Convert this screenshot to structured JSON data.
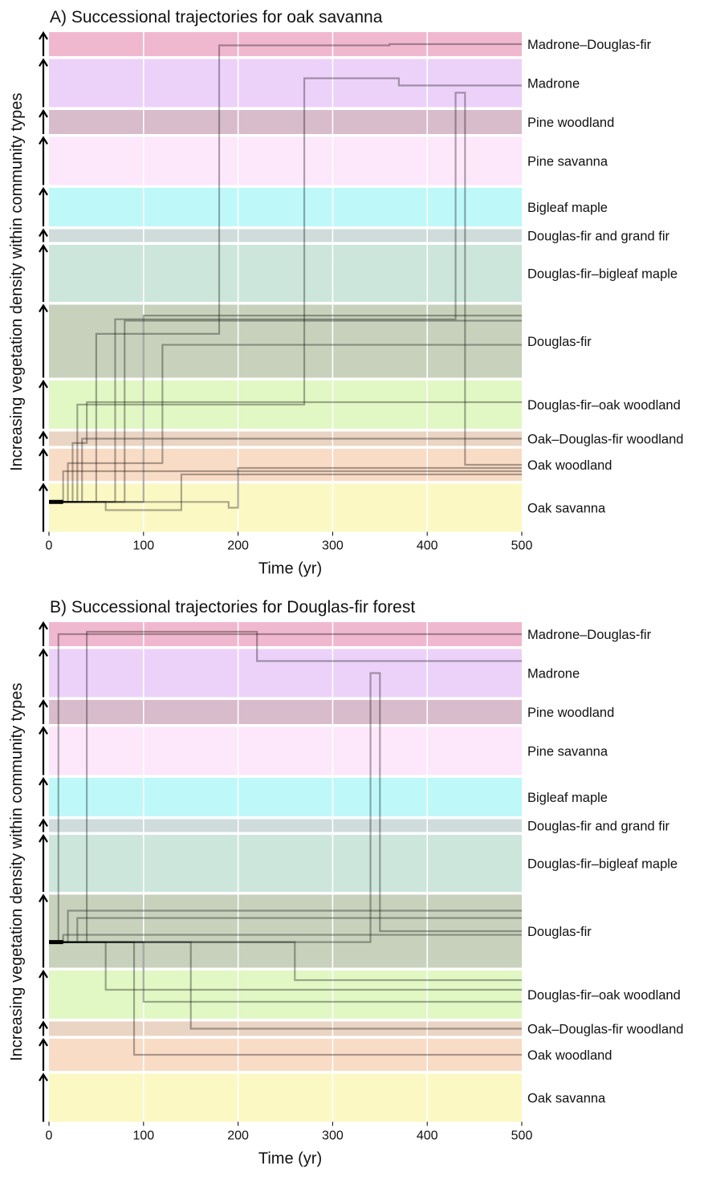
{
  "figure": {
    "x_ticks": [
      "0",
      "100",
      "200",
      "300",
      "400",
      "500"
    ],
    "xlabel": "Time (yr)",
    "ylabel": "Increasing vegetation density within community types"
  },
  "chart_data": [
    {
      "type": "line",
      "title": "A) Successional trajectories for oak savanna",
      "xlabel": "Time (yr)",
      "ylabel": "Increasing vegetation density within community types",
      "xlim": [
        0,
        500
      ],
      "x_ticks": [
        0,
        100,
        200,
        300,
        400,
        500
      ],
      "grid": true,
      "legend": "none",
      "community_types": [
        {
          "name": "Madrone–Douglas-fir",
          "color": "#f0b8cf"
        },
        {
          "name": "Madrone",
          "color": "#ecd2f9"
        },
        {
          "name": "Pine woodland",
          "color": "#d8bccb"
        },
        {
          "name": "Pine savanna",
          "color": "#fde7fb"
        },
        {
          "name": "Bigleaf maple",
          "color": "#bff8f9"
        },
        {
          "name": "Douglas-fir and grand fir",
          "color": "#cfdcdb"
        },
        {
          "name": "Douglas-fir–bigleaf maple",
          "color": "#cde6db"
        },
        {
          "name": "Douglas-fir",
          "color": "#c7d1bc"
        },
        {
          "name": "Douglas-fir–oak woodland",
          "color": "#e1f7c4"
        },
        {
          "name": "Oak–Douglas-fir woodland",
          "color": "#ead4c3"
        },
        {
          "name": "Oak woodland",
          "color": "#f9dcc6"
        },
        {
          "name": "Oak savanna",
          "color": "#fbf8c4"
        }
      ],
      "series": [
        {
          "start_type": "Oak savanna",
          "start_level": 0.62,
          "points": [
            [
              0,
              "Oak savanna",
              0.62
            ],
            [
              15,
              "Oak woodland",
              0.3
            ],
            [
              500,
              "Oak woodland",
              0.3
            ]
          ]
        },
        {
          "start_type": "Oak savanna",
          "start_level": 0.62,
          "points": [
            [
              0,
              "Oak savanna",
              0.62
            ],
            [
              25,
              "Oak–Douglas-fir woodland",
              0.2
            ],
            [
              40,
              "Douglas-fir–oak woodland",
              0.55
            ],
            [
              500,
              "Douglas-fir–oak woodland",
              0.55
            ]
          ]
        },
        {
          "start_type": "Oak savanna",
          "start_level": 0.62,
          "points": [
            [
              0,
              "Oak savanna",
              0.62
            ],
            [
              30,
              "Douglas-fir–oak woodland",
              0.5
            ],
            [
              80,
              "Douglas-fir",
              0.78
            ],
            [
              500,
              "Douglas-fir",
              0.78
            ]
          ]
        },
        {
          "start_type": "Oak savanna",
          "start_level": 0.62,
          "points": [
            [
              0,
              "Oak savanna",
              0.62
            ],
            [
              20,
              "Oak woodland",
              0.55
            ],
            [
              120,
              "Douglas-fir",
              0.45
            ],
            [
              500,
              "Douglas-fir",
              0.45
            ]
          ]
        },
        {
          "start_type": "Oak savanna",
          "start_level": 0.62,
          "points": [
            [
              0,
              "Oak savanna",
              0.62
            ],
            [
              35,
              "Oak–Douglas-fir woodland",
              0.5
            ],
            [
              500,
              "Oak–Douglas-fir woodland",
              0.5
            ]
          ]
        },
        {
          "start_type": "Oak savanna",
          "start_level": 0.62,
          "points": [
            [
              0,
              "Oak savanna",
              0.62
            ],
            [
              60,
              "Oak savanna",
              0.45
            ],
            [
              140,
              "Oak woodland",
              0.2
            ],
            [
              500,
              "Oak woodland",
              0.2
            ]
          ]
        },
        {
          "start_type": "Oak savanna",
          "start_level": 0.62,
          "points": [
            [
              0,
              "Oak savanna",
              0.62
            ],
            [
              100,
              "Douglas-fir",
              0.85
            ],
            [
              500,
              "Douglas-fir",
              0.85
            ]
          ]
        },
        {
          "start_type": "Oak savanna",
          "start_level": 0.62,
          "points": [
            [
              0,
              "Oak savanna",
              0.62
            ],
            [
              190,
              "Oak savanna",
              0.5
            ],
            [
              200,
              "Oak woodland",
              0.4
            ],
            [
              500,
              "Oak woodland",
              0.4
            ]
          ]
        },
        {
          "start_type": "Oak savanna",
          "start_level": 0.62,
          "points": [
            [
              0,
              "Oak savanna",
              0.62
            ],
            [
              50,
              "Douglas-fir",
              0.6
            ],
            [
              180,
              "Madrone–Douglas-fir",
              0.45
            ],
            [
              360,
              "Madrone–Douglas-fir",
              0.5
            ],
            [
              500,
              "Madrone–Douglas-fir",
              0.5
            ]
          ]
        },
        {
          "start_type": "Oak savanna",
          "start_level": 0.62,
          "points": [
            [
              0,
              "Oak savanna",
              0.62
            ],
            [
              80,
              "Douglas-fir–oak woodland",
              0.5
            ],
            [
              270,
              "Madrone",
              0.6
            ],
            [
              370,
              "Madrone",
              0.45
            ],
            [
              500,
              "Madrone",
              0.45
            ]
          ]
        },
        {
          "start_type": "Oak savanna",
          "start_level": 0.62,
          "points": [
            [
              0,
              "Oak savanna",
              0.62
            ],
            [
              70,
              "Douglas-fir",
              0.8
            ],
            [
              430,
              "Madrone",
              0.3
            ],
            [
              440,
              "Oak woodland",
              0.5
            ],
            [
              500,
              "Oak woodland",
              0.5
            ]
          ]
        }
      ]
    },
    {
      "type": "line",
      "title": "B) Successional trajectories for Douglas-fir forest",
      "xlabel": "Time (yr)",
      "ylabel": "Increasing vegetation density within community types",
      "xlim": [
        0,
        500
      ],
      "x_ticks": [
        0,
        100,
        200,
        300,
        400,
        500
      ],
      "grid": true,
      "legend": "none",
      "community_types": [
        {
          "name": "Madrone–Douglas-fir",
          "color": "#f0b8cf"
        },
        {
          "name": "Madrone",
          "color": "#ecd2f9"
        },
        {
          "name": "Pine woodland",
          "color": "#d8bccb"
        },
        {
          "name": "Pine savanna",
          "color": "#fde7fb"
        },
        {
          "name": "Bigleaf maple",
          "color": "#bff8f9"
        },
        {
          "name": "Douglas-fir and grand fir",
          "color": "#cfdcdb"
        },
        {
          "name": "Douglas-fir–bigleaf maple",
          "color": "#cde6db"
        },
        {
          "name": "Douglas-fir",
          "color": "#c7d1bc"
        },
        {
          "name": "Douglas-fir–oak woodland",
          "color": "#e1f7c4"
        },
        {
          "name": "Oak–Douglas-fir woodland",
          "color": "#ead4c3"
        },
        {
          "name": "Oak woodland",
          "color": "#f9dcc6"
        },
        {
          "name": "Oak savanna",
          "color": "#fbf8c4"
        }
      ],
      "series": [
        {
          "start_type": "Douglas-fir",
          "start_level": 0.35,
          "points": [
            [
              0,
              "Douglas-fir",
              0.35
            ],
            [
              20,
              "Douglas-fir",
              0.78
            ],
            [
              500,
              "Douglas-fir",
              0.78
            ]
          ]
        },
        {
          "start_type": "Douglas-fir",
          "start_level": 0.35,
          "points": [
            [
              0,
              "Douglas-fir",
              0.35
            ],
            [
              15,
              "Douglas-fir",
              0.45
            ],
            [
              500,
              "Douglas-fir",
              0.45
            ]
          ]
        },
        {
          "start_type": "Douglas-fir",
          "start_level": 0.35,
          "points": [
            [
              0,
              "Douglas-fir",
              0.35
            ],
            [
              30,
              "Douglas-fir",
              0.68
            ],
            [
              500,
              "Douglas-fir",
              0.68
            ]
          ]
        },
        {
          "start_type": "Douglas-fir",
          "start_level": 0.35,
          "points": [
            [
              0,
              "Douglas-fir",
              0.35
            ],
            [
              10,
              "Madrone–Douglas-fir",
              0.5
            ],
            [
              500,
              "Madrone–Douglas-fir",
              0.5
            ]
          ]
        },
        {
          "start_type": "Douglas-fir",
          "start_level": 0.35,
          "points": [
            [
              0,
              "Douglas-fir",
              0.35
            ],
            [
              40,
              "Madrone–Douglas-fir",
              0.6
            ],
            [
              220,
              "Madrone",
              0.75
            ],
            [
              500,
              "Madrone",
              0.75
            ]
          ]
        },
        {
          "start_type": "Douglas-fir",
          "start_level": 0.35,
          "points": [
            [
              0,
              "Douglas-fir",
              0.35
            ],
            [
              60,
              "Douglas-fir–oak woodland",
              0.6
            ],
            [
              500,
              "Douglas-fir–oak woodland",
              0.6
            ]
          ]
        },
        {
          "start_type": "Douglas-fir",
          "start_level": 0.35,
          "points": [
            [
              0,
              "Douglas-fir",
              0.35
            ],
            [
              100,
              "Douglas-fir–oak woodland",
              0.35
            ],
            [
              500,
              "Douglas-fir–oak woodland",
              0.35
            ]
          ]
        },
        {
          "start_type": "Douglas-fir",
          "start_level": 0.35,
          "points": [
            [
              0,
              "Douglas-fir",
              0.35
            ],
            [
              90,
              "Oak woodland",
              0.5
            ],
            [
              500,
              "Oak woodland",
              0.5
            ]
          ]
        },
        {
          "start_type": "Douglas-fir",
          "start_level": 0.35,
          "points": [
            [
              0,
              "Douglas-fir",
              0.35
            ],
            [
              150,
              "Oak–Douglas-fir woodland",
              0.5
            ],
            [
              500,
              "Oak–Douglas-fir woodland",
              0.5
            ]
          ]
        },
        {
          "start_type": "Douglas-fir",
          "start_level": 0.35,
          "points": [
            [
              0,
              "Douglas-fir",
              0.35
            ],
            [
              340,
              "Madrone",
              0.5
            ],
            [
              350,
              "Douglas-fir",
              0.5
            ],
            [
              500,
              "Douglas-fir",
              0.5
            ]
          ]
        },
        {
          "start_type": "Douglas-fir",
          "start_level": 0.35,
          "points": [
            [
              0,
              "Douglas-fir",
              0.35
            ],
            [
              260,
              "Douglas-fir–oak woodland",
              0.8
            ],
            [
              500,
              "Douglas-fir–oak woodland",
              0.8
            ]
          ]
        }
      ]
    }
  ]
}
